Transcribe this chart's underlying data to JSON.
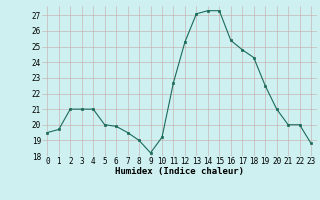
{
  "x": [
    0,
    1,
    2,
    3,
    4,
    5,
    6,
    7,
    8,
    9,
    10,
    11,
    12,
    13,
    14,
    15,
    16,
    17,
    18,
    19,
    20,
    21,
    22,
    23
  ],
  "y": [
    19.5,
    19.7,
    21.0,
    21.0,
    21.0,
    20.0,
    19.9,
    19.5,
    19.0,
    18.2,
    19.2,
    22.7,
    25.3,
    27.1,
    27.3,
    27.3,
    25.4,
    24.8,
    24.3,
    22.5,
    21.0,
    20.0,
    20.0,
    18.8
  ],
  "line_color": "#1a6b5a",
  "marker": "s",
  "marker_size": 2.0,
  "bg_color": "#cef0f0",
  "grid_color_major": "#c8a8a8",
  "grid_color_minor": "#ddc8c8",
  "xlabel": "Humidex (Indice chaleur)",
  "xlim": [
    -0.5,
    23.5
  ],
  "ylim": [
    18,
    27.6
  ],
  "yticks": [
    18,
    19,
    20,
    21,
    22,
    23,
    24,
    25,
    26,
    27
  ],
  "xticks": [
    0,
    1,
    2,
    3,
    4,
    5,
    6,
    7,
    8,
    9,
    10,
    11,
    12,
    13,
    14,
    15,
    16,
    17,
    18,
    19,
    20,
    21,
    22,
    23
  ],
  "tick_fontsize": 5.5,
  "xlabel_fontsize": 6.5,
  "line_width": 0.8
}
